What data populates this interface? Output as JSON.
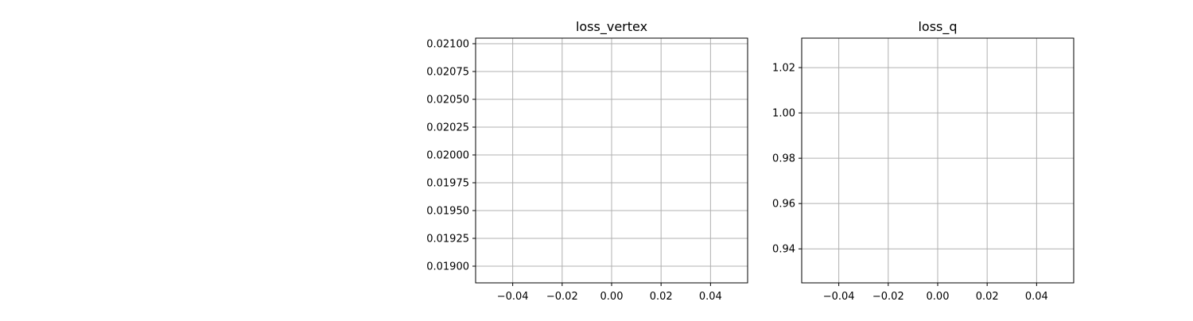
{
  "chart_data": [
    {
      "type": "line",
      "title": "loss_vertex",
      "xlabel": "",
      "ylabel": "",
      "xlim": [
        -0.055,
        0.055
      ],
      "ylim": [
        0.01885,
        0.02105
      ],
      "x_ticks": [
        "−0.04",
        "−0.02",
        "0.00",
        "0.02",
        "0.04"
      ],
      "x_tick_values": [
        -0.04,
        -0.02,
        0.0,
        0.02,
        0.04
      ],
      "y_ticks": [
        "0.01900",
        "0.01925",
        "0.01950",
        "0.01975",
        "0.02000",
        "0.02025",
        "0.02050",
        "0.02075",
        "0.02100"
      ],
      "y_tick_values": [
        0.019,
        0.01925,
        0.0195,
        0.01975,
        0.02,
        0.02025,
        0.0205,
        0.02075,
        0.021
      ],
      "grid": true,
      "series": [
        {
          "x": [],
          "y": []
        }
      ]
    },
    {
      "type": "line",
      "title": "loss_q",
      "xlabel": "",
      "ylabel": "",
      "xlim": [
        -0.055,
        0.055
      ],
      "ylim": [
        0.925,
        1.033
      ],
      "x_ticks": [
        "−0.04",
        "−0.02",
        "0.00",
        "0.02",
        "0.04"
      ],
      "x_tick_values": [
        -0.04,
        -0.02,
        0.0,
        0.02,
        0.04
      ],
      "y_ticks": [
        "0.94",
        "0.96",
        "0.98",
        "1.00",
        "1.02"
      ],
      "y_tick_values": [
        0.94,
        0.96,
        0.98,
        1.0,
        1.02
      ],
      "grid": true,
      "series": [
        {
          "x": [],
          "y": []
        }
      ]
    }
  ],
  "style": {
    "grid_color": "#b0b0b0",
    "axis_color": "#000000",
    "line_color": "#1f77b4"
  }
}
